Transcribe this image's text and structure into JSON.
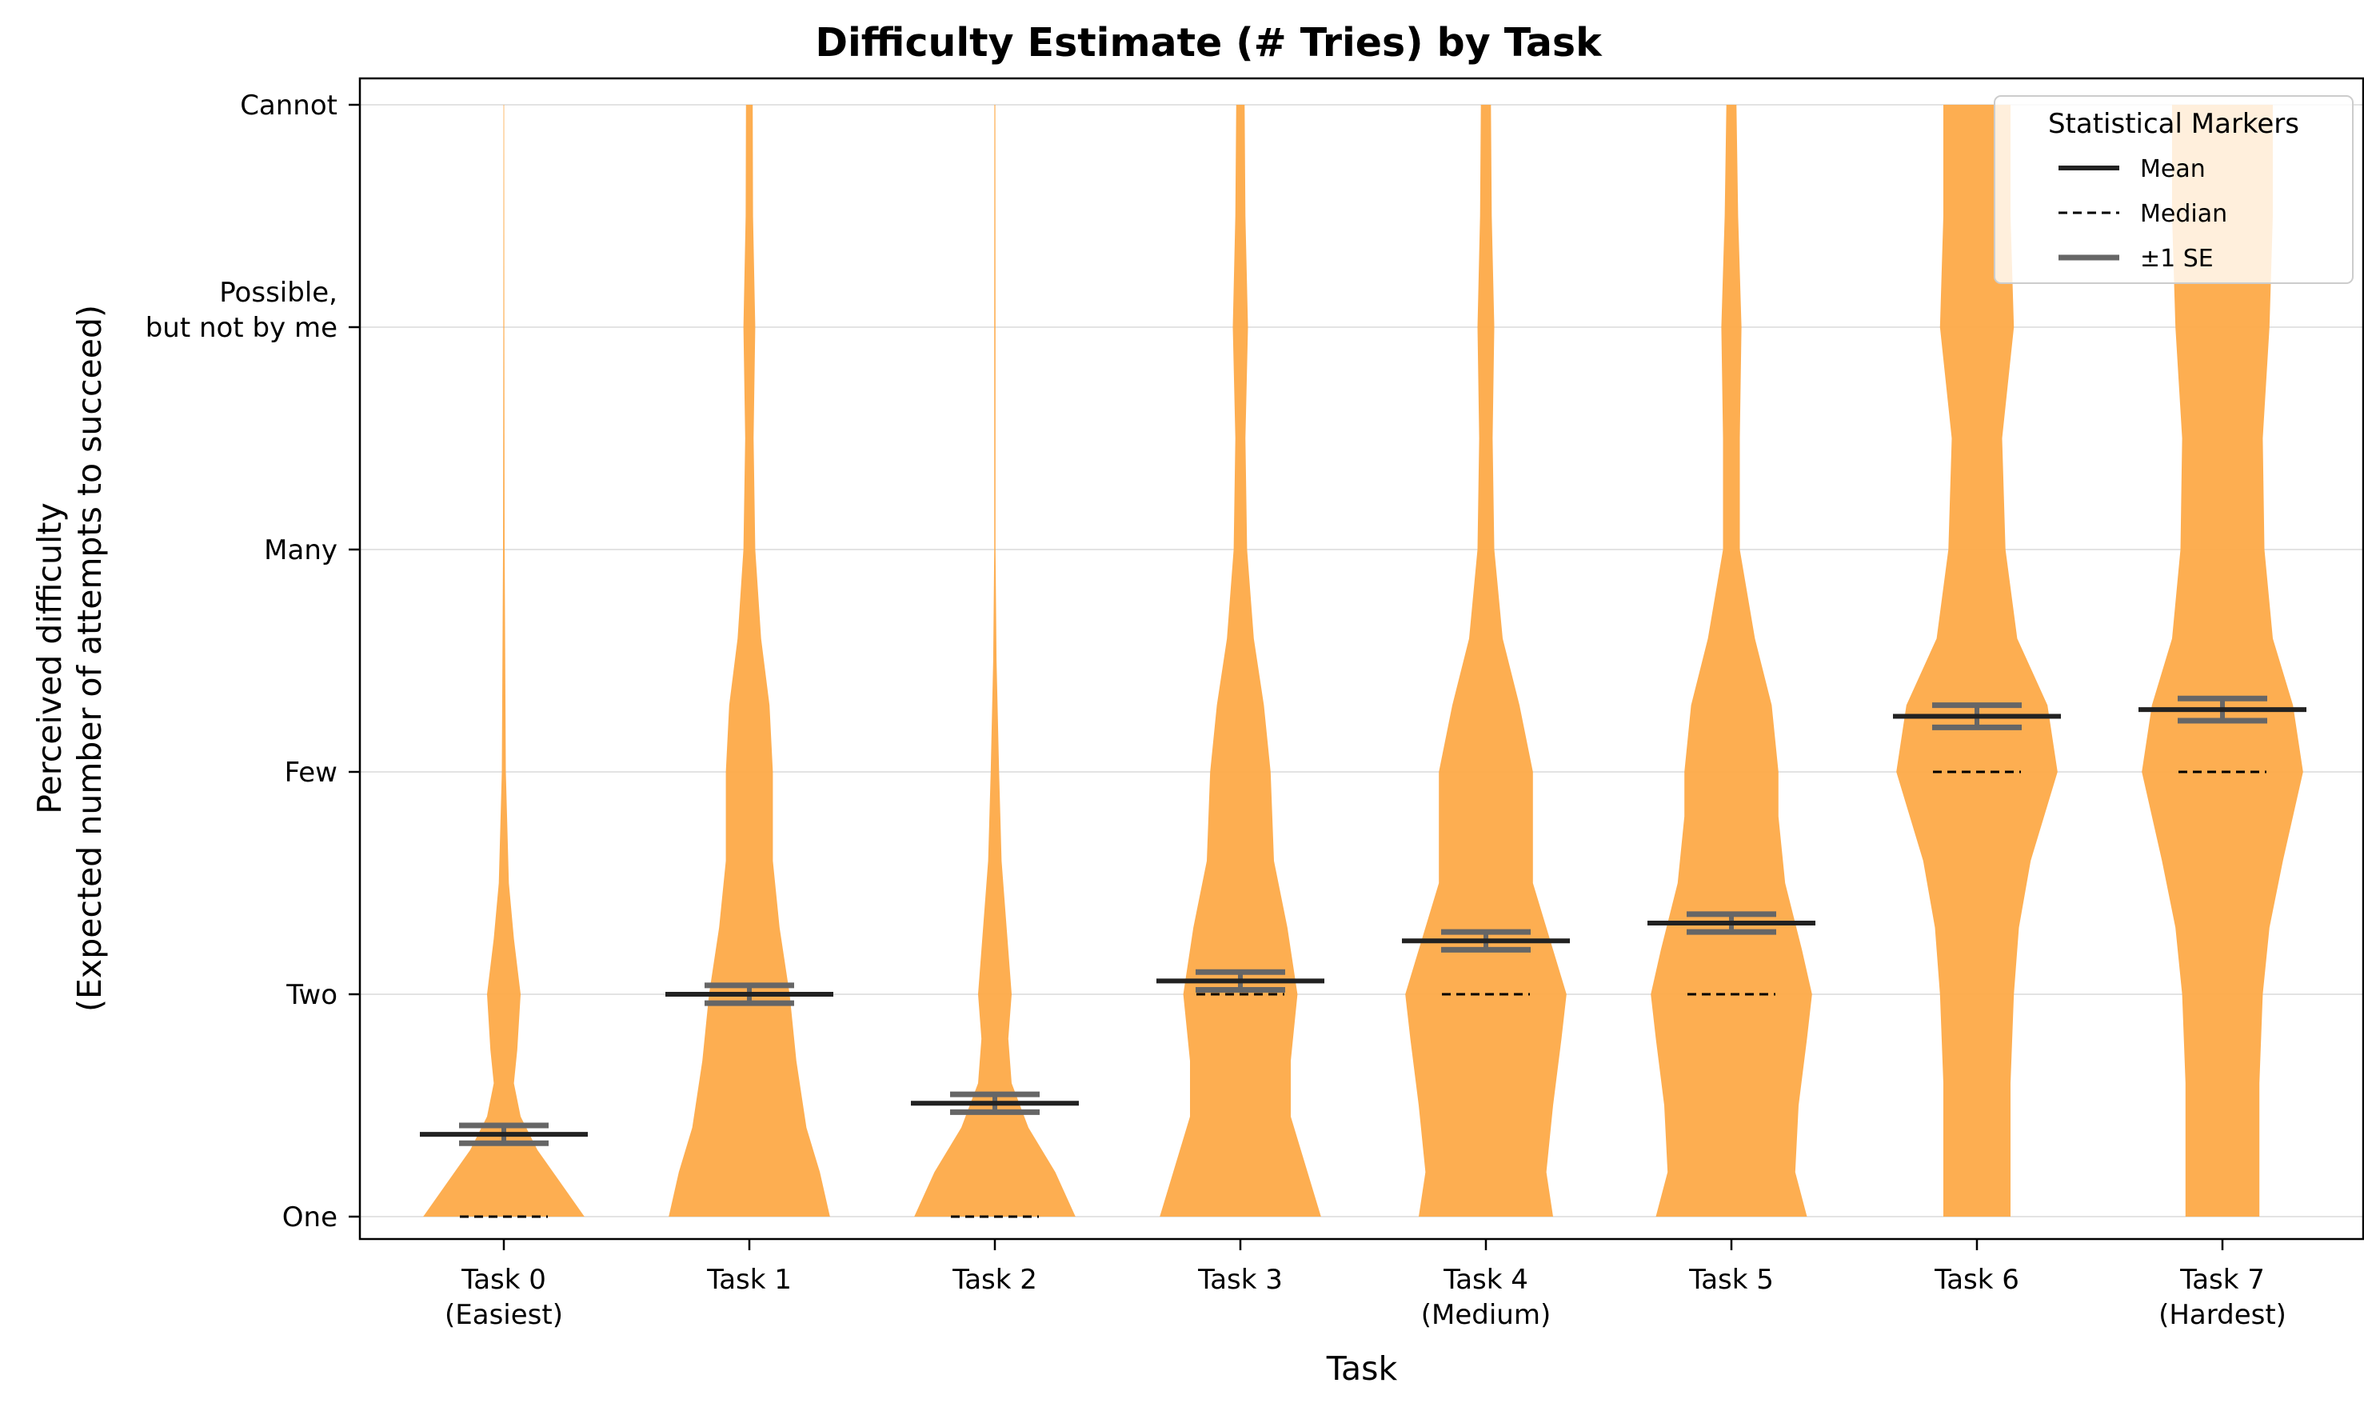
{
  "chart_data": {
    "type": "violin",
    "title": "Difficulty Estimate (# Tries) by Task",
    "xlabel": "Task",
    "ylabel": [
      "Perceived difficulty",
      "(Expected number of attempts to succeed)"
    ],
    "ylim": [
      1,
      6
    ],
    "y_ticks": [
      {
        "value": 1,
        "lines": [
          "One"
        ]
      },
      {
        "value": 2,
        "lines": [
          "Two"
        ]
      },
      {
        "value": 3,
        "lines": [
          "Few"
        ]
      },
      {
        "value": 4,
        "lines": [
          "Many"
        ]
      },
      {
        "value": 5,
        "lines": [
          "Possible,",
          "but not by me"
        ]
      },
      {
        "value": 6,
        "lines": [
          "Cannot"
        ]
      }
    ],
    "grid": "y",
    "violin_color": "#fdaa48",
    "mean_color": "#222222",
    "se_color": "#666666",
    "median_color": "#000000",
    "tasks": [
      {
        "lines": [
          "Task 0",
          "(Easiest)"
        ],
        "mean": 1.37,
        "se": 0.04,
        "median": 1,
        "profile": [
          [
            1,
            0.48
          ],
          [
            1.15,
            0.34
          ],
          [
            1.3,
            0.2
          ],
          [
            1.45,
            0.1
          ],
          [
            1.6,
            0.06
          ],
          [
            1.75,
            0.08
          ],
          [
            2,
            0.1
          ],
          [
            2.25,
            0.06
          ],
          [
            2.5,
            0.03
          ],
          [
            3,
            0.012
          ],
          [
            4,
            0.005
          ],
          [
            5,
            0.003
          ],
          [
            6,
            0.002
          ]
        ]
      },
      {
        "lines": [
          "Task 1"
        ],
        "mean": 2.0,
        "se": 0.04,
        "median": null,
        "profile": [
          [
            1,
            0.48
          ],
          [
            1.2,
            0.42
          ],
          [
            1.4,
            0.34
          ],
          [
            1.7,
            0.28
          ],
          [
            2,
            0.24
          ],
          [
            2.3,
            0.18
          ],
          [
            2.6,
            0.14
          ],
          [
            3,
            0.14
          ],
          [
            3.3,
            0.12
          ],
          [
            3.6,
            0.07
          ],
          [
            4,
            0.035
          ],
          [
            4.5,
            0.025
          ],
          [
            5,
            0.035
          ],
          [
            5.5,
            0.022
          ],
          [
            6,
            0.02
          ]
        ]
      },
      {
        "lines": [
          "Task 2"
        ],
        "mean": 1.51,
        "se": 0.04,
        "median": 1,
        "profile": [
          [
            1,
            0.48
          ],
          [
            1.2,
            0.36
          ],
          [
            1.4,
            0.2
          ],
          [
            1.6,
            0.1
          ],
          [
            1.8,
            0.08
          ],
          [
            2,
            0.1
          ],
          [
            2.3,
            0.07
          ],
          [
            2.6,
            0.04
          ],
          [
            3,
            0.025
          ],
          [
            3.5,
            0.01
          ],
          [
            4,
            0.004
          ],
          [
            5,
            0.004
          ],
          [
            6,
            0.003
          ]
        ]
      },
      {
        "lines": [
          "Task 3"
        ],
        "mean": 2.06,
        "se": 0.04,
        "median": 2,
        "profile": [
          [
            1,
            0.48
          ],
          [
            1.2,
            0.4
          ],
          [
            1.45,
            0.3
          ],
          [
            1.7,
            0.3
          ],
          [
            2,
            0.34
          ],
          [
            2.3,
            0.28
          ],
          [
            2.6,
            0.2
          ],
          [
            3,
            0.18
          ],
          [
            3.3,
            0.14
          ],
          [
            3.6,
            0.08
          ],
          [
            4,
            0.04
          ],
          [
            4.5,
            0.03
          ],
          [
            5,
            0.045
          ],
          [
            5.5,
            0.03
          ],
          [
            6,
            0.025
          ]
        ]
      },
      {
        "lines": [
          "Task 4",
          "(Medium)"
        ],
        "mean": 2.24,
        "se": 0.04,
        "median": 2,
        "profile": [
          [
            1,
            0.4
          ],
          [
            1.2,
            0.36
          ],
          [
            1.5,
            0.4
          ],
          [
            1.8,
            0.45
          ],
          [
            2,
            0.48
          ],
          [
            2.2,
            0.4
          ],
          [
            2.5,
            0.28
          ],
          [
            2.8,
            0.28
          ],
          [
            3,
            0.28
          ],
          [
            3.3,
            0.2
          ],
          [
            3.6,
            0.1
          ],
          [
            4,
            0.05
          ],
          [
            4.5,
            0.04
          ],
          [
            5,
            0.05
          ],
          [
            5.5,
            0.035
          ],
          [
            6,
            0.03
          ]
        ]
      },
      {
        "lines": [
          "Task 5"
        ],
        "mean": 2.32,
        "se": 0.04,
        "median": 2,
        "profile": [
          [
            1,
            0.45
          ],
          [
            1.2,
            0.38
          ],
          [
            1.5,
            0.4
          ],
          [
            1.8,
            0.45
          ],
          [
            2,
            0.48
          ],
          [
            2.2,
            0.42
          ],
          [
            2.5,
            0.32
          ],
          [
            2.8,
            0.28
          ],
          [
            3,
            0.28
          ],
          [
            3.3,
            0.24
          ],
          [
            3.6,
            0.14
          ],
          [
            4,
            0.05
          ],
          [
            4.5,
            0.05
          ],
          [
            5,
            0.06
          ],
          [
            5.5,
            0.04
          ],
          [
            6,
            0.03
          ]
        ]
      },
      {
        "lines": [
          "Task 6"
        ],
        "mean": 3.25,
        "se": 0.05,
        "median": 3,
        "profile": [
          [
            1,
            0.2
          ],
          [
            1.3,
            0.2
          ],
          [
            1.6,
            0.2
          ],
          [
            2,
            0.22
          ],
          [
            2.3,
            0.25
          ],
          [
            2.6,
            0.32
          ],
          [
            3,
            0.48
          ],
          [
            3.3,
            0.42
          ],
          [
            3.6,
            0.24
          ],
          [
            4,
            0.17
          ],
          [
            4.5,
            0.15
          ],
          [
            5,
            0.22
          ],
          [
            5.5,
            0.2
          ],
          [
            6,
            0.2
          ]
        ]
      },
      {
        "lines": [
          "Task 7",
          "(Hardest)"
        ],
        "mean": 3.28,
        "se": 0.05,
        "median": 3,
        "profile": [
          [
            1,
            0.22
          ],
          [
            1.3,
            0.22
          ],
          [
            1.6,
            0.22
          ],
          [
            2,
            0.24
          ],
          [
            2.3,
            0.28
          ],
          [
            2.6,
            0.36
          ],
          [
            3,
            0.48
          ],
          [
            3.3,
            0.42
          ],
          [
            3.6,
            0.3
          ],
          [
            4,
            0.25
          ],
          [
            4.5,
            0.24
          ],
          [
            5,
            0.28
          ],
          [
            5.5,
            0.3
          ],
          [
            6,
            0.3
          ]
        ]
      }
    ],
    "legend": {
      "title": "Statistical Markers",
      "position": "upper-right",
      "items": [
        {
          "label": "Mean",
          "style": "mean"
        },
        {
          "label": "Median",
          "style": "median"
        },
        {
          "label": "±1 SE",
          "style": "se"
        }
      ]
    }
  }
}
